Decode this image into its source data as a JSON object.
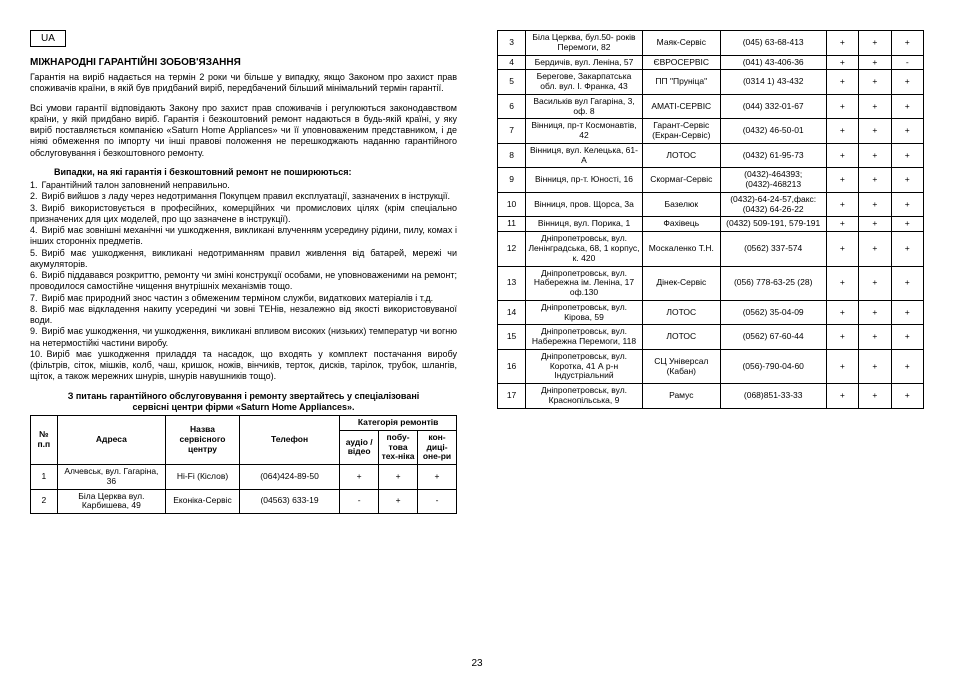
{
  "page_number": "23",
  "ua_label": "UA",
  "title": "МІЖНАРОДНІ ГАРАНТІЙНІ ЗОБОВ'ЯЗАННЯ",
  "para1": "Гарантія на виріб надається на термін 2 роки чи більше у випадку, якщо Законом про захист прав споживачів країни, в якій був придбаний виріб, передбачений більший мінімальний термін гарантії.",
  "para2": "Всі умови гарантії відповідають Закону про захист прав споживачів і регулюються законодавством країни, у якій придбано виріб. Гарантія і безкоштовний ремонт надаються в будь-якій країні, у яку виріб поставляється компанією «Saturn Home Appliances» чи її уповноваженим представником, і де ніякі обмеження по імпорту чи інші правові положення не перешкоджають наданню гарантійного обслуговування і безкоштовного ремонту.",
  "cases_heading": "Випадки, на які гарантія і безкоштовний ремонт не поширюються:",
  "cases": [
    "Гарантійний талон заповнений неправильно.",
    "Виріб вийшов з ладу через недотримання Покупцем правил експлуатації, зазначених в інструкції.",
    "Виріб використовується в професійних, комерційних чи промислових цілях (крім спеціально призначених для цих моделей, про що зазначене в інструкції).",
    "Виріб має зовнішні механічні чи ушкодження, викликані влученням усередину рідини, пилу, комах і інших сторонніх предметів.",
    "Виріб має ушкодження, викликані недотриманням правил живлення від батарей, мережі чи акумуляторів.",
    "Виріб піддавався розкриттю, ремонту чи зміні конструкції особами, не уповноваженими на ремонт; проводилося самостійне чищення внутрішніх механізмів тощо.",
    "Виріб має природний знос частин з обмеженим терміном служби, видаткових матеріалів і т.д.",
    "Виріб має відкладення накипу усередині чи зовні ТЕНів, незалежно від якості використовуваної води.",
    "Виріб має ушкодження, чи ушкодження, викликані впливом високих (низьких) температур чи вогню на нетермостійкі частини виробу.",
    "Виріб має ушкодження приладдя та насадок, що входять у комплект постачання виробу (фільтрів, сіток, мішків, колб, чаш, кришок, ножів, вінчиків, терток, дисків, тарілок, трубок, шлангів, щіток, а також мережних шнурів, шнурів навушників тощо)."
  ],
  "footer_note_1": "З питань гарантійного обслуговування і ремонту звертайтесь у спеціалізовані",
  "footer_note_2": "сервісні центри фірми «Saturn Home Appliances».",
  "headers": {
    "num": "№ п.п",
    "address": "Адреса",
    "center": "Назва сервісного центру",
    "phone": "Телефон",
    "cat": "Категорія ремонтів",
    "c1": "аудіо / відео",
    "c2": "побу-това тех-ніка",
    "c3": "кон-диці-оне-ри"
  },
  "rows_left": [
    {
      "n": "1",
      "a": "Алчевськ, вул. Гагаріна, 36",
      "s": "Hi-Fi (Кіслов)",
      "t": "(064)424-89-50",
      "c1": "+",
      "c2": "+",
      "c3": "+"
    },
    {
      "n": "2",
      "a": "Біла Церква вул. Карбишева, 49",
      "s": "Еконіка-Сервіс",
      "t": "(04563) 633-19",
      "c1": "-",
      "c2": "+",
      "c3": "-"
    }
  ],
  "rows_right": [
    {
      "n": "3",
      "a": "Біла Церква, бул.50- років Перемоги, 82",
      "s": "Маяк-Сервіс",
      "t": "(045) 63-68-413",
      "c1": "+",
      "c2": "+",
      "c3": "+"
    },
    {
      "n": "4",
      "a": "Бердичів, вул. Леніна, 57",
      "s": "ЄВРОСЕРВІС",
      "t": "(041) 43-406-36",
      "c1": "+",
      "c2": "+",
      "c3": "-"
    },
    {
      "n": "5",
      "a": "Берегове, Закарпатська обл. вул. І. Франка, 43",
      "s": "ПП \"Пруніца\"",
      "t": "(0314 1) 43-432",
      "c1": "+",
      "c2": "+",
      "c3": "+"
    },
    {
      "n": "6",
      "a": "Васильків вул Гагаріна, 3, оф. 8",
      "s": "AMATI-СЕРВІС",
      "t": "(044) 332-01-67",
      "c1": "+",
      "c2": "+",
      "c3": "+"
    },
    {
      "n": "7",
      "a": "Вінниця, пр-т Космонавтів, 42",
      "s": "Гарант-Сервіс (Екран-Сервіс)",
      "t": "(0432) 46-50-01",
      "c1": "+",
      "c2": "+",
      "c3": "+"
    },
    {
      "n": "8",
      "a": "Вінниця, вул. Келецька, 61-А",
      "s": "ЛОТОС",
      "t": "(0432) 61-95-73",
      "c1": "+",
      "c2": "+",
      "c3": "+"
    },
    {
      "n": "9",
      "a": "Вінниця, пр-т. Юності, 16",
      "s": "Скормаг-Сервіс",
      "t": "(0432)-464393; (0432)-468213",
      "c1": "+",
      "c2": "+",
      "c3": "+"
    },
    {
      "n": "10",
      "a": "Вінниця, пров. Щорса, 3а",
      "s": "Базелюк",
      "t": "(0432)-64-24-57,факс: (0432) 64-26-22",
      "c1": "+",
      "c2": "+",
      "c3": "+"
    },
    {
      "n": "11",
      "a": "Вінниця, вул. Порика, 1",
      "s": "Фахівець",
      "t": "(0432) 509-191, 579-191",
      "c1": "+",
      "c2": "+",
      "c3": "+"
    },
    {
      "n": "12",
      "a": "Дніпропетровськ, вул. Ленінградська, 68, 1 корпус, к. 420",
      "s": "Москаленко Т.Н.",
      "t": "(0562) 337-574",
      "c1": "+",
      "c2": "+",
      "c3": "+"
    },
    {
      "n": "13",
      "a": "Дніпропетровськ, вул. Набережна ім. Леніна, 17 оф.130",
      "s": "Дінек-Сервіс",
      "t": "(056) 778-63-25 (28)",
      "c1": "+",
      "c2": "+",
      "c3": "+"
    },
    {
      "n": "14",
      "a": "Дніпропетровськ, вул. Кірова, 59",
      "s": "ЛОТОС",
      "t": "(0562) 35-04-09",
      "c1": "+",
      "c2": "+",
      "c3": "+"
    },
    {
      "n": "15",
      "a": "Дніпропетровськ, вул. Набережна Перемоги, 118",
      "s": "ЛОТОС",
      "t": "(0562) 67-60-44",
      "c1": "+",
      "c2": "+",
      "c3": "+"
    },
    {
      "n": "16",
      "a": "Дніпропетровськ, вул. Коротка, 41 А р-н Індустріальний",
      "s": "СЦ Універсал (Кабан)",
      "t": "(056)-790-04-60",
      "c1": "+",
      "c2": "+",
      "c3": "+"
    },
    {
      "n": "17",
      "a": "Дніпропетровськ, вул. Краснопільська, 9",
      "s": "Рамус",
      "t": "(068)851-33-33",
      "c1": "+",
      "c2": "+",
      "c3": "+"
    }
  ]
}
